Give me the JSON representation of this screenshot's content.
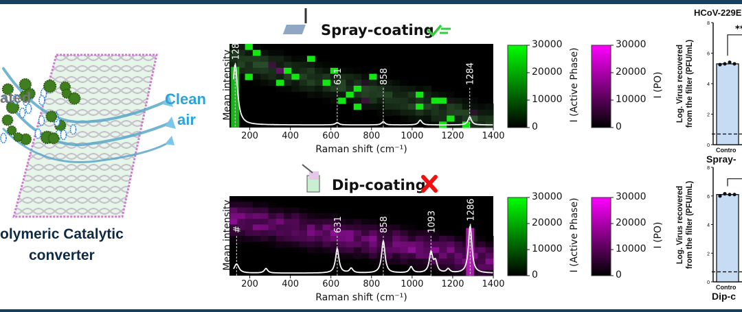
{
  "left_panel": {
    "inlet_label": "ated",
    "outlet_label_line1": "Clean",
    "outlet_label_line2": "air",
    "caption_line1": "olymeric Catalytic",
    "caption_line2": "converter",
    "colors": {
      "inlet": "#777777",
      "outlet": "#2ba3dc",
      "caption": "#0f2a44",
      "virus": "#3f7f1f",
      "bacteria": "#2f86d6"
    }
  },
  "chart_data": [
    {
      "type": "heatmap",
      "title": "Spray-coating",
      "result": "check",
      "dominant_phase": "Active Phase",
      "xlabel": "Raman shift (cm⁻¹)",
      "ylabel": "Mean intensity",
      "xlim": [
        100,
        1400
      ],
      "xticks": [
        "200",
        "400",
        "600",
        "800",
        "1000",
        "1200",
        "1400"
      ],
      "peaks": [
        {
          "label": "128",
          "x": 128,
          "height": 0.75
        },
        {
          "label": "631",
          "x": 631,
          "height": 0.03
        },
        {
          "label": "858",
          "x": 858,
          "height": 0.04
        },
        {
          "label": "",
          "x": 1040,
          "height": 0.06
        },
        {
          "label": "1284",
          "x": 1284,
          "height": 0.1
        }
      ],
      "colorbars": [
        {
          "label": "I (Active Phase)",
          "ticks": [
            "30000",
            "20000",
            "10000",
            "0"
          ],
          "range": [
            0,
            30000
          ],
          "color": "#00ff00"
        },
        {
          "label": "I (PO)",
          "ticks": [
            "30000",
            "20000",
            "10000",
            "0"
          ],
          "range": [
            0,
            30000
          ],
          "color": "#ff00ff"
        }
      ]
    },
    {
      "type": "heatmap",
      "title": "Dip-coating",
      "result": "cross",
      "dominant_phase": "PO",
      "xlabel": "Raman shift (cm⁻¹)",
      "ylabel": "Mean intensity",
      "xlim": [
        100,
        1400
      ],
      "xticks": [
        "200",
        "400",
        "600",
        "800",
        "1000",
        "1200",
        "1400"
      ],
      "peaks": [
        {
          "label": "#",
          "x": 135,
          "height": 0.12
        },
        {
          "label": "",
          "x": 280,
          "height": 0.06
        },
        {
          "label": "631",
          "x": 631,
          "height": 0.32
        },
        {
          "label": "",
          "x": 700,
          "height": 0.06
        },
        {
          "label": "858",
          "x": 858,
          "height": 0.42
        },
        {
          "label": "",
          "x": 995,
          "height": 0.08
        },
        {
          "label": "1093",
          "x": 1093,
          "height": 0.26
        },
        {
          "label": "",
          "x": 1115,
          "height": 0.14
        },
        {
          "label": "",
          "x": 1178,
          "height": 0.05
        },
        {
          "label": "1286",
          "x": 1286,
          "height": 0.62
        }
      ],
      "colorbars": [
        {
          "label": "I (Active Phase)",
          "ticks": [
            "30000",
            "20000",
            "10000",
            "0"
          ],
          "range": [
            0,
            30000
          ],
          "color": "#00ff00"
        },
        {
          "label": "I (PO)",
          "ticks": [
            "30000",
            "20000",
            "10000",
            "0"
          ],
          "range": [
            0,
            30000
          ],
          "color": "#ff00ff"
        }
      ]
    },
    {
      "type": "bar",
      "title": "HCoV-229E",
      "ylabel_line1": "Log.  Virus recovered",
      "ylabel_line2": "from the filter (PFU/mL)",
      "ylim": [
        0,
        8
      ],
      "yticks": [
        "0",
        "2",
        "4",
        "6",
        "8"
      ],
      "categories": [
        "Control"
      ],
      "category_labels": [
        "Contro"
      ],
      "group_label": "Spray-",
      "values": [
        5.3
      ],
      "points": [
        [
          5.25,
          5.3,
          5.4,
          5.3
        ]
      ],
      "detection_limit": 0.7,
      "significance": "**"
    },
    {
      "type": "bar",
      "title": "",
      "ylabel_line1": "Log.  Virus recovered",
      "ylabel_line2": "from the filter (PFU/mL)",
      "ylim": [
        0,
        8
      ],
      "yticks": [
        "0",
        "2",
        "4",
        "6",
        "8"
      ],
      "categories": [
        "Control"
      ],
      "category_labels": [
        "Contro"
      ],
      "group_label": "Dip-c",
      "values": [
        6.1
      ],
      "points": [
        [
          6.0,
          6.15,
          6.1,
          6.1
        ]
      ],
      "detection_limit": 0.7,
      "significance": ""
    }
  ]
}
